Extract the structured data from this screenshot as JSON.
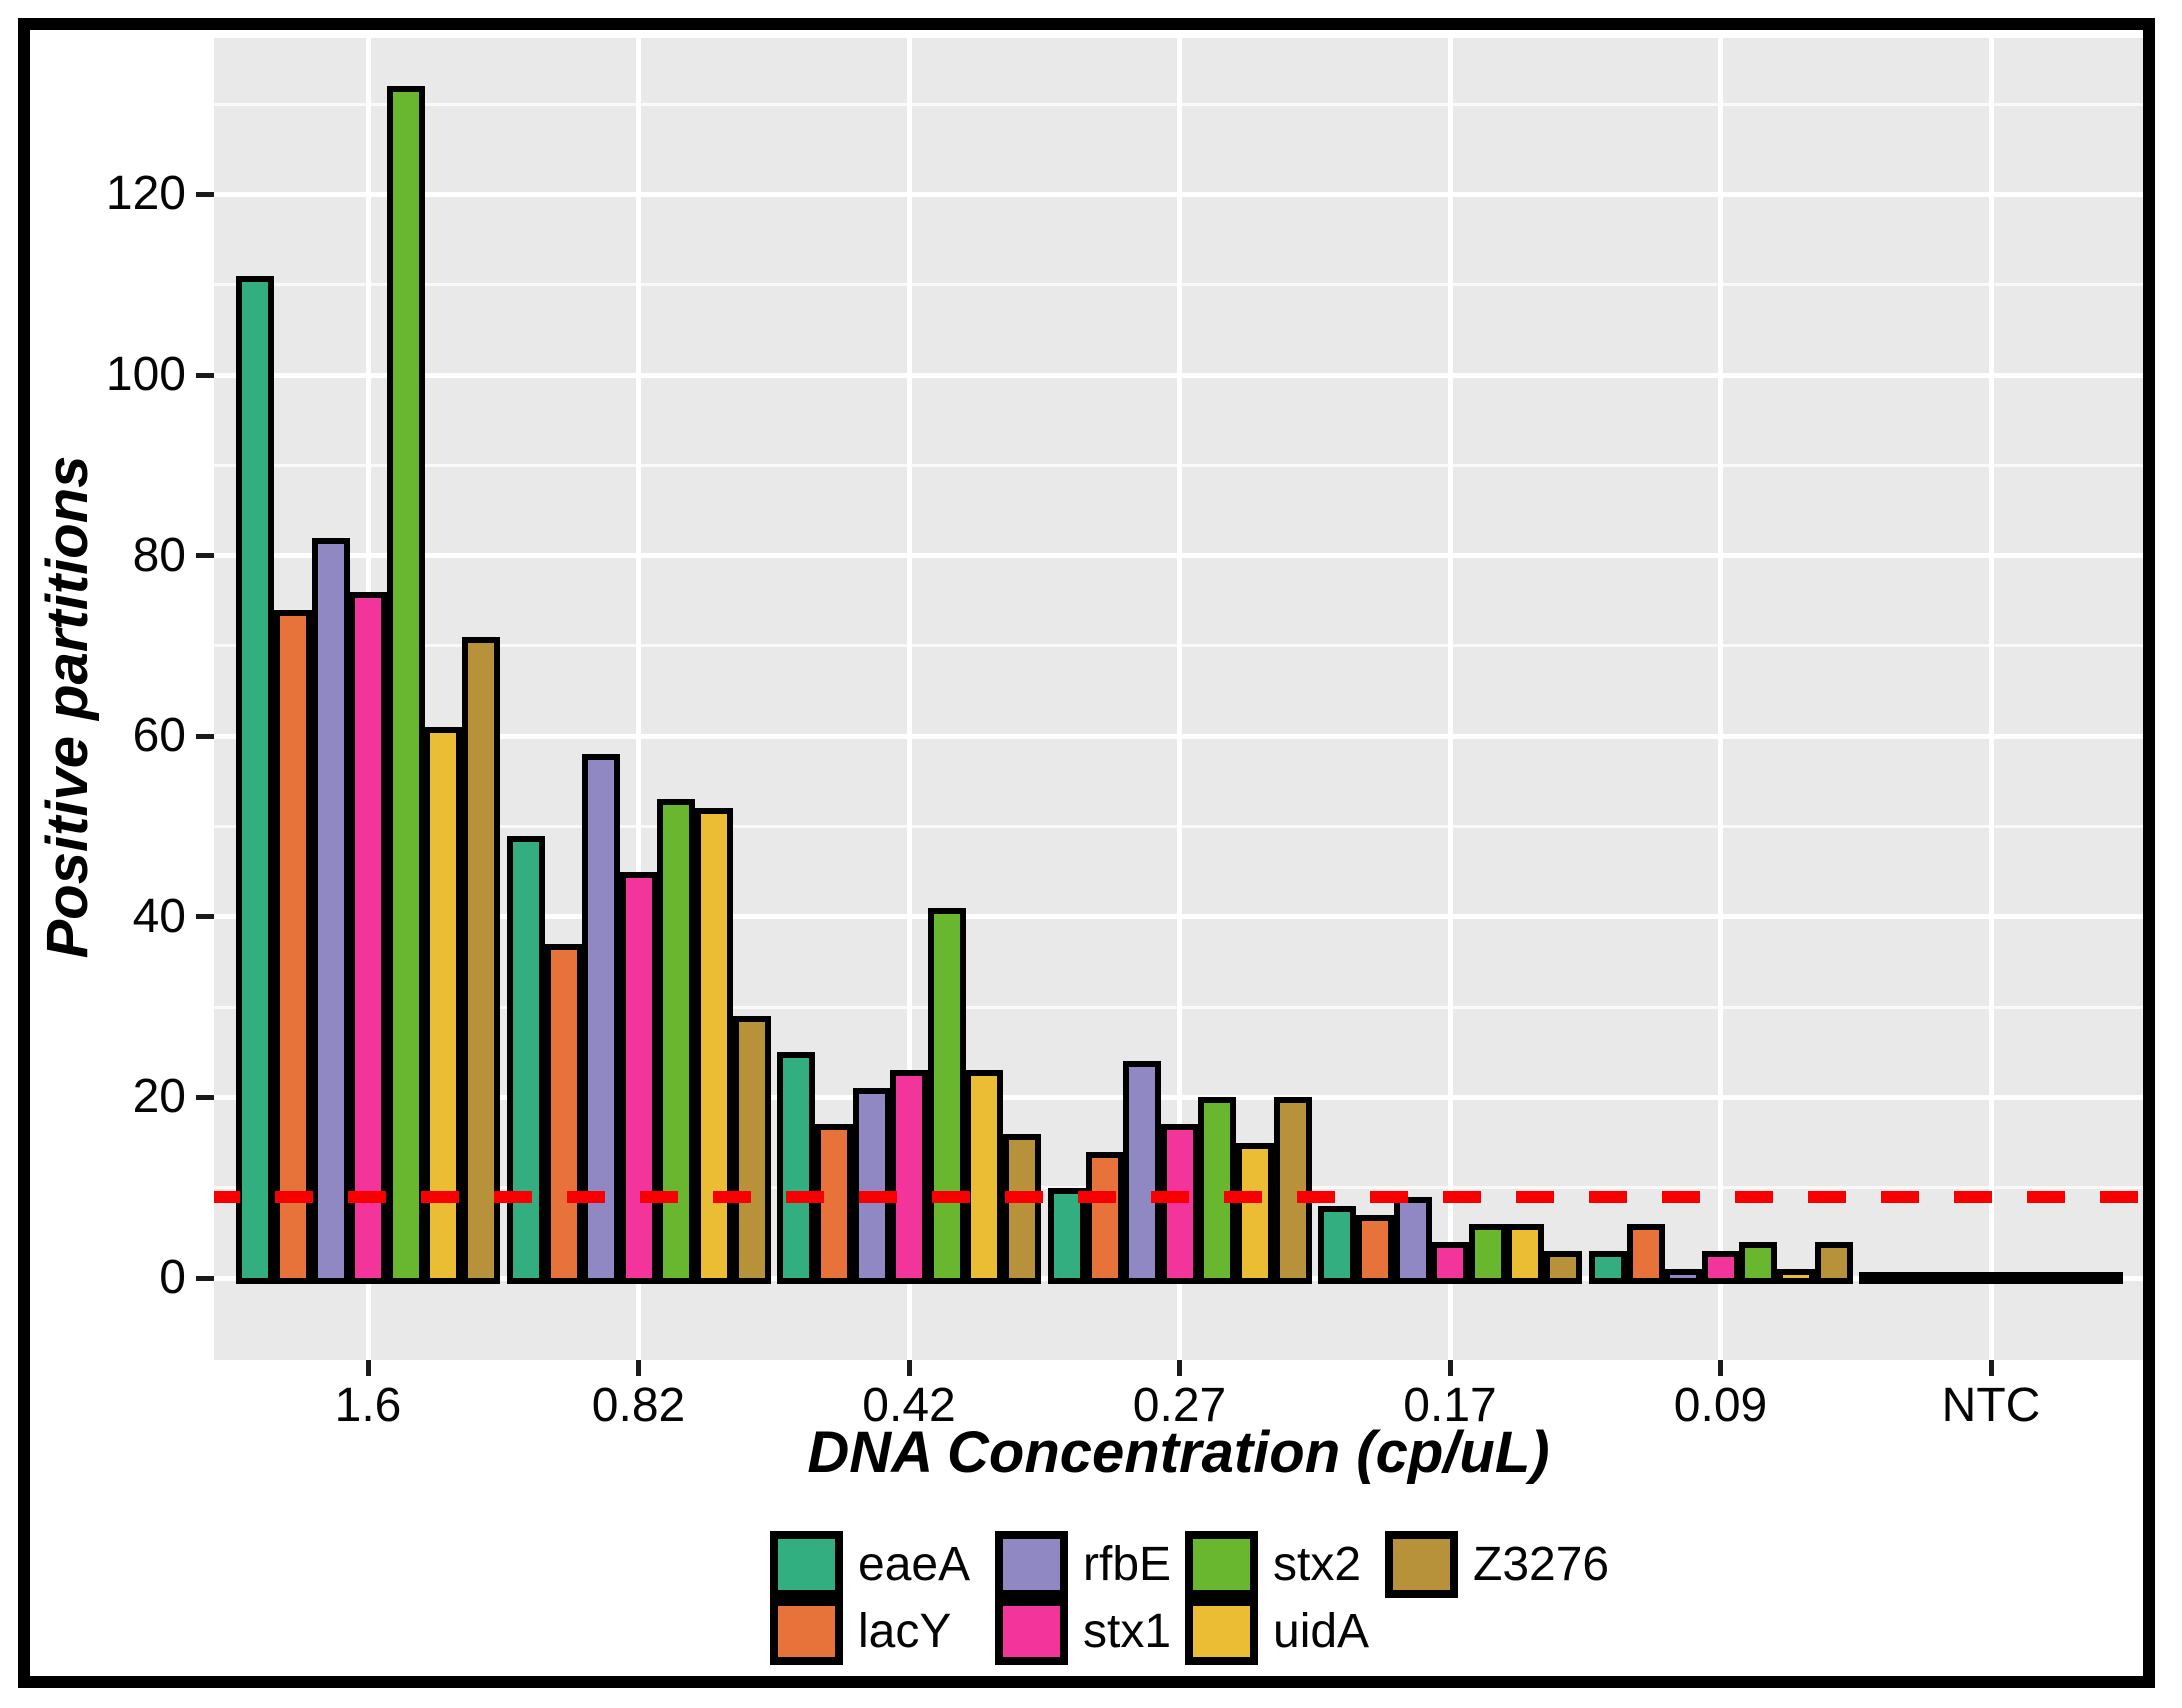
{
  "chart_data": {
    "type": "bar",
    "title": "",
    "xlabel": "DNA Concentration (cp/uL)",
    "ylabel": "Positive partitions",
    "categories": [
      "1.6",
      "0.82",
      "0.42",
      "0.27",
      "0.17",
      "0.09",
      "NTC"
    ],
    "series": [
      {
        "name": "eaeA",
        "color": "#33AE80",
        "values": [
          111,
          49,
          25,
          10,
          8,
          3,
          0
        ]
      },
      {
        "name": "lacY",
        "color": "#E7733A",
        "values": [
          74,
          37,
          17,
          14,
          7,
          6,
          0
        ]
      },
      {
        "name": "rfbE",
        "color": "#8F88C2",
        "values": [
          82,
          58,
          21,
          24,
          9,
          1,
          0
        ]
      },
      {
        "name": "stx1",
        "color": "#F3349B",
        "values": [
          76,
          45,
          23,
          17,
          4,
          3,
          0
        ]
      },
      {
        "name": "stx2",
        "color": "#69B62F",
        "values": [
          132,
          53,
          41,
          20,
          6,
          4,
          0
        ]
      },
      {
        "name": "uidA",
        "color": "#EBBD35",
        "values": [
          61,
          52,
          23,
          15,
          6,
          1,
          0
        ]
      },
      {
        "name": "Z3276",
        "color": "#B7923B",
        "values": [
          71,
          29,
          16,
          20,
          3,
          4,
          0
        ]
      }
    ],
    "y_ticks": [
      0,
      20,
      40,
      60,
      80,
      100,
      120
    ],
    "y_minor_ticks": [
      10,
      30,
      50,
      70,
      90,
      110,
      130
    ],
    "ylim": [
      -9,
      138
    ],
    "threshold_line": {
      "value": 9,
      "color": "#F80000",
      "style": "dashed"
    },
    "grid": true,
    "legend_position": "bottom",
    "panel_background": "#e9e9e9"
  }
}
